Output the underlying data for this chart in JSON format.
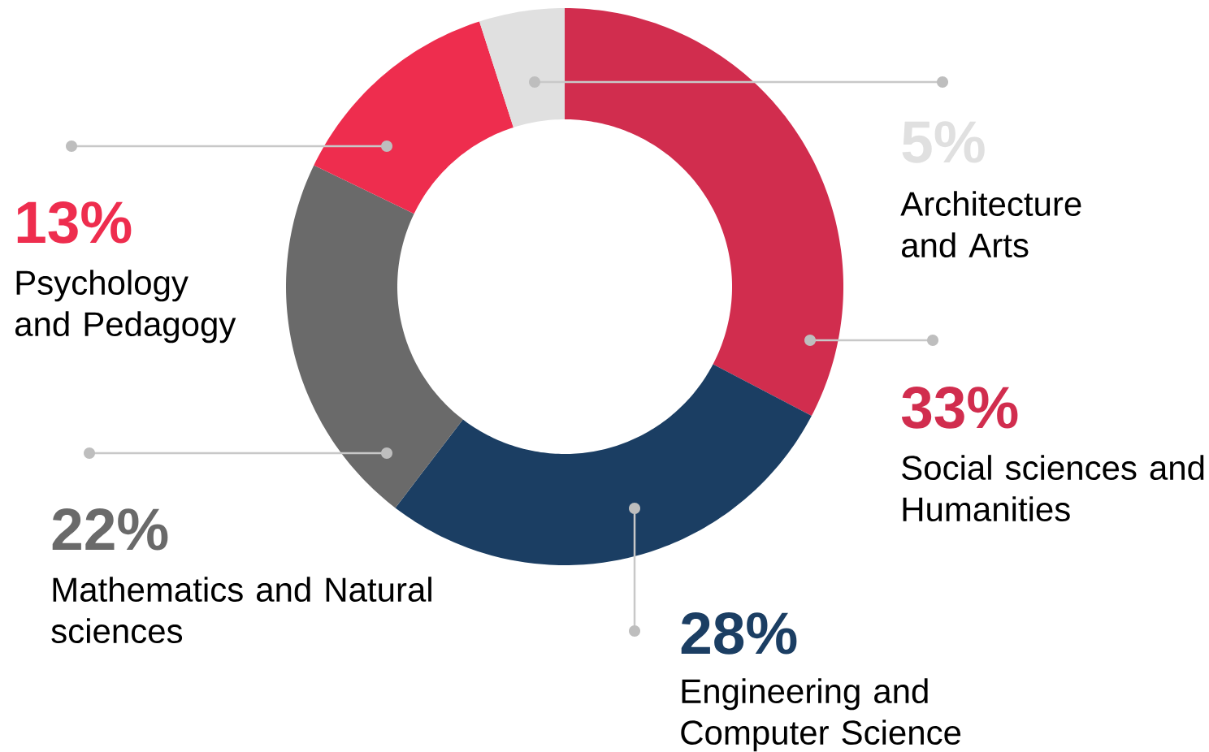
{
  "chart_data": {
    "type": "donut",
    "categories": [
      "Social sciences and Humanities",
      "Engineering and Computer Science",
      "Mathematics and Natural sciences",
      "Psychology and Pedagogy",
      "Architecture and Arts"
    ],
    "values": [
      33,
      28,
      22,
      13,
      5
    ],
    "colors": [
      "#d12d4e",
      "#1b3e63",
      "#6a6a6a",
      "#ee2d4e",
      "#e0e0e0"
    ],
    "value_labels": [
      "33%",
      "28%",
      "22%",
      "13%",
      "5%"
    ]
  }
}
